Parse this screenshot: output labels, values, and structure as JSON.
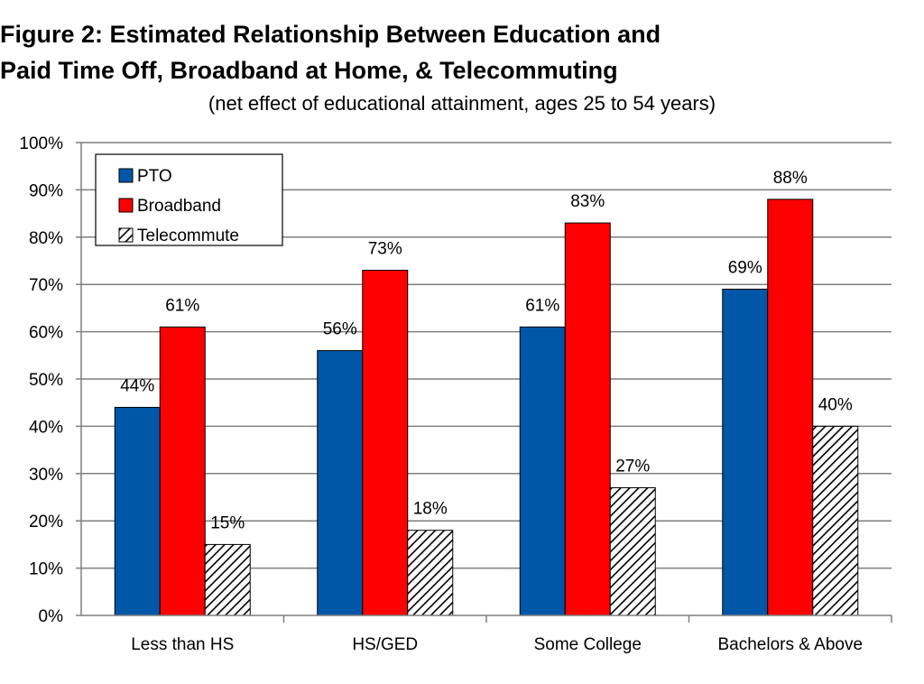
{
  "chart_data": {
    "type": "bar",
    "title": "Figure 2: Estimated Relationship Between Education and Paid Time Off, Broadband at Home, & Telecommuting",
    "title_lines": [
      "Figure 2: Estimated Relationship Between Education and",
      "Paid Time Off, Broadband at Home, & Telecommuting"
    ],
    "subtitle": "(net effect of educational attainment, ages 25 to 54 years)",
    "xlabel": "",
    "ylabel": "",
    "categories": [
      "Less than HS",
      "HS/GED",
      "Some College",
      "Bachelors & Above"
    ],
    "ylim": [
      0,
      100
    ],
    "y_ticks": [
      "0%",
      "10%",
      "20%",
      "30%",
      "40%",
      "50%",
      "60%",
      "70%",
      "80%",
      "90%",
      "100%"
    ],
    "grid": true,
    "legend_position": "top-left",
    "series": [
      {
        "name": "PTO",
        "values": [
          44,
          56,
          61,
          69
        ],
        "labels": [
          "44%",
          "56%",
          "61%",
          "69%"
        ],
        "color": "#0057A8",
        "fill": "solid"
      },
      {
        "name": "Broadband",
        "values": [
          61,
          73,
          83,
          88
        ],
        "labels": [
          "61%",
          "73%",
          "83%",
          "88%"
        ],
        "color": "#FF0000",
        "fill": "solid"
      },
      {
        "name": "Telecommute",
        "values": [
          15,
          18,
          27,
          40
        ],
        "labels": [
          "15%",
          "18%",
          "27%",
          "40%"
        ],
        "color": "#000000",
        "fill": "diagonal-hatch"
      }
    ]
  }
}
